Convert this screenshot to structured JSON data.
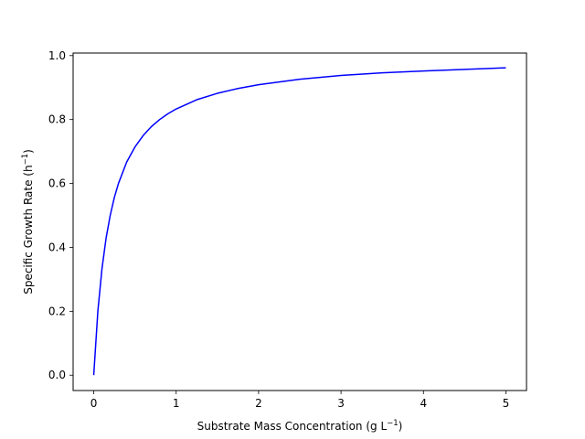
{
  "chart_data": {
    "type": "line",
    "title": "",
    "xlabel": {
      "base": "Substrate Mass Concentration (g L",
      "sup": "−1",
      "tail": ")"
    },
    "ylabel": {
      "base": "Specific Growth Rate (h",
      "sup": "−1",
      "tail": ")"
    },
    "xlim": [
      -0.25,
      5.25
    ],
    "ylim": [
      -0.048,
      1.008
    ],
    "xticks": [
      0,
      1,
      2,
      3,
      4,
      5
    ],
    "xtick_labels": [
      "0",
      "1",
      "2",
      "3",
      "4",
      "5"
    ],
    "yticks": [
      0.0,
      0.2,
      0.4,
      0.6,
      0.8,
      1.0
    ],
    "ytick_labels": [
      "0.0",
      "0.2",
      "0.4",
      "0.6",
      "0.8",
      "1.0"
    ],
    "grid": false,
    "series": [
      {
        "color": "#0000ff",
        "x": [
          0,
          0.05,
          0.1,
          0.15,
          0.2,
          0.25,
          0.3,
          0.4,
          0.5,
          0.6,
          0.7,
          0.8,
          0.9,
          1.0,
          1.25,
          1.5,
          1.75,
          2.0,
          2.5,
          3.0,
          3.5,
          4.0,
          4.5,
          5.0
        ],
        "y": [
          0.0,
          0.2,
          0.333,
          0.429,
          0.5,
          0.556,
          0.6,
          0.667,
          0.714,
          0.75,
          0.778,
          0.8,
          0.818,
          0.833,
          0.862,
          0.882,
          0.897,
          0.909,
          0.926,
          0.938,
          0.946,
          0.952,
          0.957,
          0.962
        ]
      }
    ]
  }
}
